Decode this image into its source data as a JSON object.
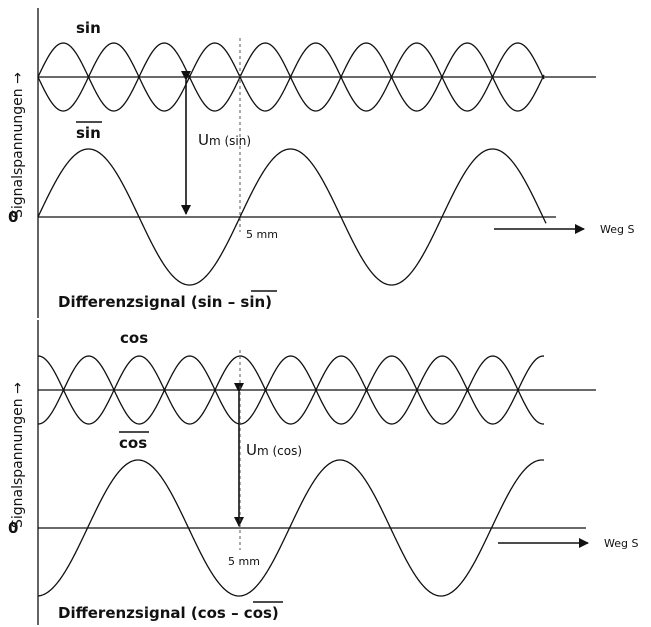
{
  "panels": [
    {
      "id": "sin",
      "y_axis_label": "Signalspannungen →",
      "signal_label": "sin",
      "inverted_signal_label": "sin",
      "zero_label": "0",
      "amplitude_label_main": "U",
      "amplitude_label_sub": "m (sin)",
      "mm_label": "5 mm",
      "path_label": "Weg S",
      "diff_label_prefix": "Differenzsignal (sin – ",
      "diff_label_overlined": "sin",
      "diff_label_suffix": ")"
    },
    {
      "id": "cos",
      "y_axis_label": "Signalspannungen →",
      "signal_label": "cos",
      "inverted_signal_label": "cos",
      "zero_label": "0",
      "amplitude_label_main": "U",
      "amplitude_label_sub": "m (cos)",
      "mm_label": "5 mm",
      "path_label": "Weg S",
      "diff_label_prefix": "Differenzsignal (cos – ",
      "diff_label_overlined": "cos",
      "diff_label_suffix": ")"
    }
  ],
  "colors": {
    "line": "#111111",
    "background": "#ffffff"
  }
}
